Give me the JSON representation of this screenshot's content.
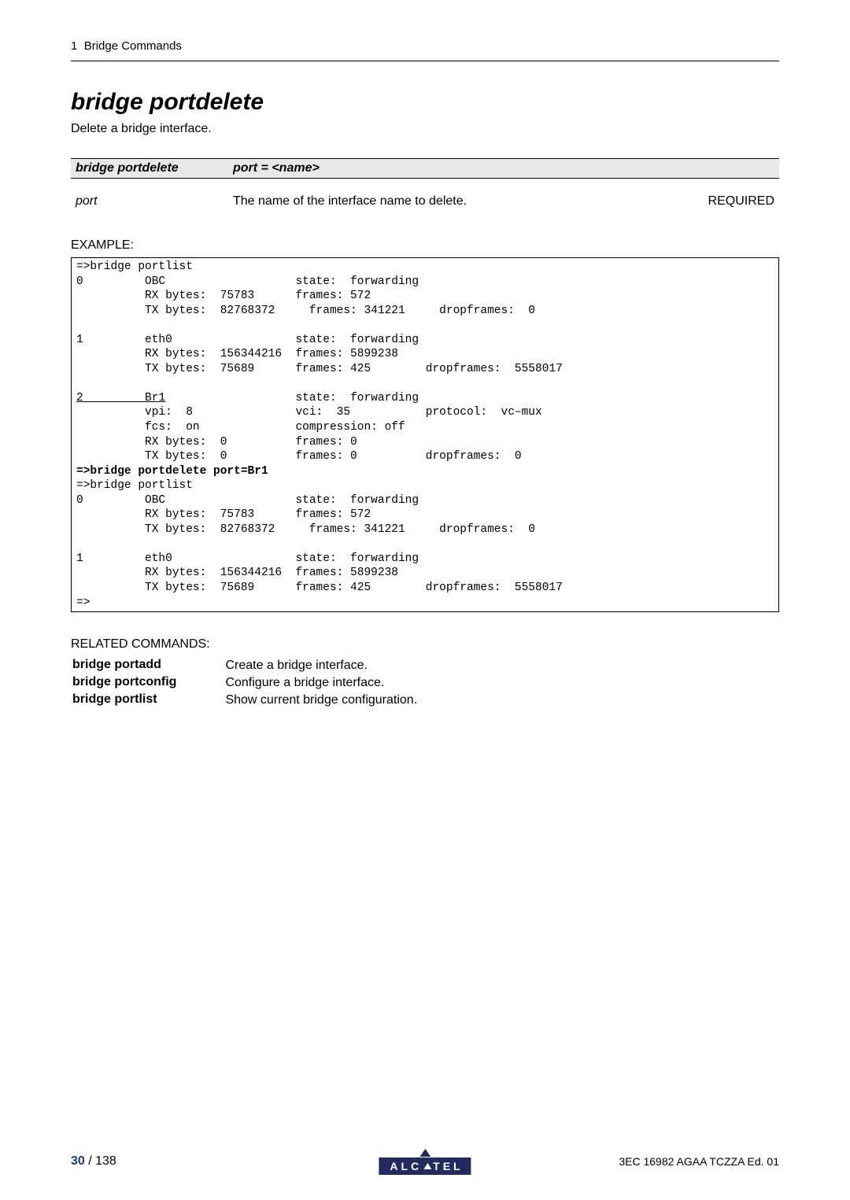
{
  "header": {
    "section_num": "1",
    "section_title": "Bridge Commands"
  },
  "command": {
    "title": "bridge portdelete",
    "description": "Delete a bridge interface.",
    "syntax_cmd": "bridge portdelete",
    "syntax_args": "port = <name>"
  },
  "param": {
    "name": "port",
    "desc": "The name of the interface name to delete.",
    "req": "REQUIRED"
  },
  "example": {
    "label": "EXAMPLE:",
    "lines": [
      {
        "pre": "",
        "ul": "",
        "post": "=>bridge portlist"
      },
      {
        "pre": "",
        "ul": "",
        "post": "0         OBC                   state:  forwarding"
      },
      {
        "pre": "",
        "ul": "",
        "post": "          RX bytes:  75783      frames: 572"
      },
      {
        "pre": "",
        "ul": "",
        "post": "          TX bytes:  82768372     frames: 341221     dropframes:  0"
      },
      {
        "pre": "",
        "ul": "",
        "post": ""
      },
      {
        "pre": "",
        "ul": "",
        "post": "1         eth0                  state:  forwarding"
      },
      {
        "pre": "",
        "ul": "",
        "post": "          RX bytes:  156344216  frames: 5899238"
      },
      {
        "pre": "",
        "ul": "",
        "post": "          TX bytes:  75689      frames: 425        dropframes:  5558017"
      },
      {
        "pre": "",
        "ul": "",
        "post": ""
      },
      {
        "pre": "",
        "ul": "2         Br1",
        "post": "                   state:  forwarding"
      },
      {
        "pre": "",
        "ul": "",
        "post": "          vpi:  8               vci:  35           protocol:  vc–mux"
      },
      {
        "pre": "",
        "ul": "",
        "post": "          fcs:  on              compression: off"
      },
      {
        "pre": "",
        "ul": "",
        "post": "          RX bytes:  0          frames: 0"
      },
      {
        "pre": "",
        "ul": "",
        "post": "          TX bytes:  0          frames: 0          dropframes:  0"
      },
      {
        "pre": "",
        "ul": "",
        "post": "",
        "bold": "=>bridge portdelete port=Br1"
      },
      {
        "pre": "",
        "ul": "",
        "post": "=>bridge portlist"
      },
      {
        "pre": "",
        "ul": "",
        "post": "0         OBC                   state:  forwarding"
      },
      {
        "pre": "",
        "ul": "",
        "post": "          RX bytes:  75783      frames: 572"
      },
      {
        "pre": "",
        "ul": "",
        "post": "          TX bytes:  82768372     frames: 341221     dropframes:  0"
      },
      {
        "pre": "",
        "ul": "",
        "post": ""
      },
      {
        "pre": "",
        "ul": "",
        "post": "1         eth0                  state:  forwarding"
      },
      {
        "pre": "",
        "ul": "",
        "post": "          RX bytes:  156344216  frames: 5899238"
      },
      {
        "pre": "",
        "ul": "",
        "post": "          TX bytes:  75689      frames: 425        dropframes:  5558017"
      },
      {
        "pre": "",
        "ul": "",
        "post": "=>"
      }
    ]
  },
  "related": {
    "label": "RELATED COMMANDS:",
    "rows": [
      {
        "cmd": "bridge portadd",
        "desc": "Create a bridge interface."
      },
      {
        "cmd": "bridge portconfig",
        "desc": "Configure a bridge interface."
      },
      {
        "cmd": "bridge portlist",
        "desc": "Show current bridge configuration."
      }
    ]
  },
  "footer": {
    "page_current": "30",
    "page_total": " / 138",
    "logo_text_left": "ALC",
    "logo_text_right": "TEL",
    "doc_id": "3EC 16982 AGAA TCZZA Ed. 01"
  }
}
